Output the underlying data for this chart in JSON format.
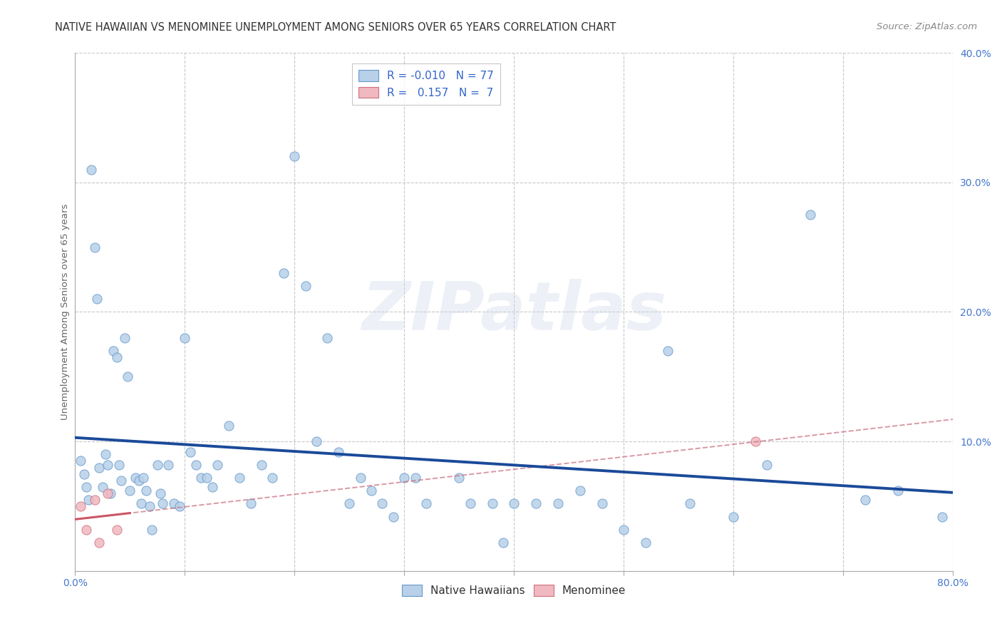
{
  "title": "NATIVE HAWAIIAN VS MENOMINEE UNEMPLOYMENT AMONG SENIORS OVER 65 YEARS CORRELATION CHART",
  "source": "Source: ZipAtlas.com",
  "ylabel": "Unemployment Among Seniors over 65 years",
  "xlim": [
    0.0,
    0.8
  ],
  "ylim": [
    0.0,
    0.4
  ],
  "xticks": [
    0.0,
    0.1,
    0.2,
    0.3,
    0.4,
    0.5,
    0.6,
    0.7,
    0.8
  ],
  "yticks": [
    0.0,
    0.1,
    0.2,
    0.3,
    0.4
  ],
  "ytick_labels": [
    "",
    "10.0%",
    "20.0%",
    "30.0%",
    "40.0%"
  ],
  "background_color": "#ffffff",
  "grid_color": "#c8c8c8",
  "blue_color": "#b8d0e8",
  "blue_edge_color": "#6699cc",
  "pink_color": "#f0b8c0",
  "pink_edge_color": "#d07080",
  "trend_blue_color": "#1a4a99",
  "trend_pink_solid_color": "#cc5566",
  "trend_pink_dashed_color": "#cc7788",
  "legend_R_color": "#3366cc",
  "tick_color": "#4477cc",
  "native_hawaiian_x": [
    0.005,
    0.008,
    0.01,
    0.012,
    0.015,
    0.018,
    0.02,
    0.022,
    0.025,
    0.028,
    0.03,
    0.032,
    0.035,
    0.038,
    0.04,
    0.042,
    0.045,
    0.048,
    0.05,
    0.055,
    0.058,
    0.06,
    0.062,
    0.065,
    0.068,
    0.07,
    0.075,
    0.078,
    0.08,
    0.085,
    0.09,
    0.095,
    0.1,
    0.105,
    0.11,
    0.115,
    0.12,
    0.125,
    0.13,
    0.14,
    0.15,
    0.16,
    0.17,
    0.18,
    0.19,
    0.2,
    0.21,
    0.22,
    0.23,
    0.24,
    0.25,
    0.26,
    0.27,
    0.28,
    0.29,
    0.3,
    0.31,
    0.32,
    0.35,
    0.36,
    0.38,
    0.39,
    0.4,
    0.42,
    0.44,
    0.46,
    0.48,
    0.5,
    0.52,
    0.54,
    0.56,
    0.6,
    0.63,
    0.67,
    0.72,
    0.75,
    0.79
  ],
  "native_hawaiian_y": [
    0.085,
    0.075,
    0.065,
    0.055,
    0.31,
    0.25,
    0.21,
    0.08,
    0.065,
    0.09,
    0.082,
    0.06,
    0.17,
    0.165,
    0.082,
    0.07,
    0.18,
    0.15,
    0.062,
    0.072,
    0.07,
    0.052,
    0.072,
    0.062,
    0.05,
    0.032,
    0.082,
    0.06,
    0.052,
    0.082,
    0.052,
    0.05,
    0.18,
    0.092,
    0.082,
    0.072,
    0.072,
    0.065,
    0.082,
    0.112,
    0.072,
    0.052,
    0.082,
    0.072,
    0.23,
    0.32,
    0.22,
    0.1,
    0.18,
    0.092,
    0.052,
    0.072,
    0.062,
    0.052,
    0.042,
    0.072,
    0.072,
    0.052,
    0.072,
    0.052,
    0.052,
    0.022,
    0.052,
    0.052,
    0.052,
    0.062,
    0.052,
    0.032,
    0.022,
    0.17,
    0.052,
    0.042,
    0.082,
    0.275,
    0.055,
    0.062,
    0.042
  ],
  "menominee_x": [
    0.005,
    0.01,
    0.018,
    0.022,
    0.03,
    0.038,
    0.62
  ],
  "menominee_y": [
    0.05,
    0.032,
    0.055,
    0.022,
    0.06,
    0.032,
    0.1
  ],
  "R_hawaiian": "-0.010",
  "N_hawaiian": "77",
  "R_menominee": "0.157",
  "N_menominee": "7",
  "marker_size": 90,
  "title_fontsize": 10.5,
  "axis_label_fontsize": 9.5,
  "tick_fontsize": 10,
  "legend_fontsize": 11,
  "source_fontsize": 9.5
}
